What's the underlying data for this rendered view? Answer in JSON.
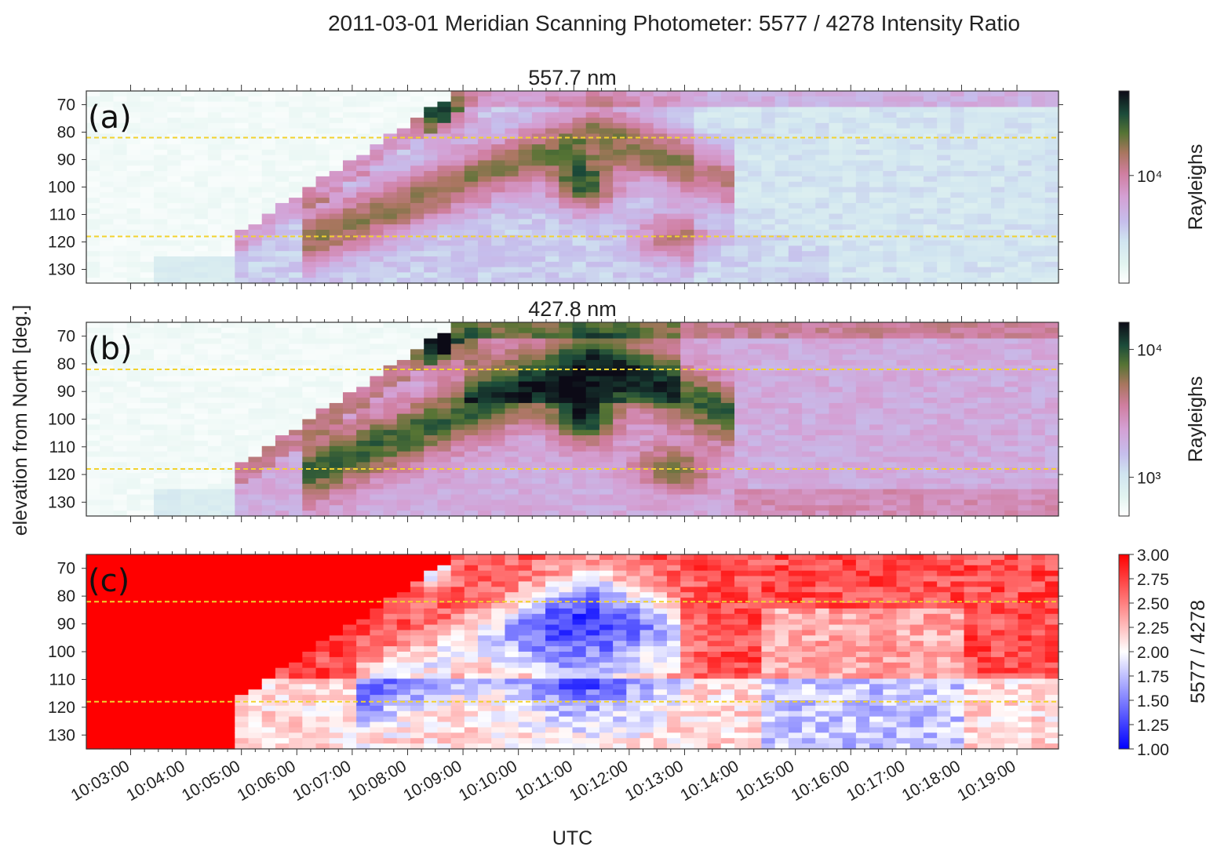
{
  "figure_title": "2011-03-01  Meridian Scanning Photometer: 5577 / 4278 Intensity Ratio",
  "chart_data": [
    {
      "type": "heatmap",
      "panel_letter": "(a)",
      "title": "557.7 nm",
      "ylabel": "elevation from North [deg.]",
      "yticks": [
        70,
        80,
        90,
        100,
        110,
        120,
        130
      ],
      "ylim": [
        135,
        65
      ],
      "xlim": [
        "10:02:12",
        "10:19:45"
      ],
      "reference_lines": [
        82,
        118
      ],
      "colorbar": {
        "label": "Rayleighs",
        "scale": "log",
        "ticks": [
          "10⁴"
        ],
        "colormap": "cubehelix-like (white–lilac–pink–olive–black)"
      }
    },
    {
      "type": "heatmap",
      "panel_letter": "(b)",
      "title": "427.8 nm",
      "yticks": [
        70,
        80,
        90,
        100,
        110,
        120,
        130
      ],
      "ylim": [
        135,
        65
      ],
      "reference_lines": [
        82,
        118
      ],
      "colorbar": {
        "label": "Rayleighs",
        "scale": "log",
        "ticks": [
          "10⁴",
          "10³"
        ],
        "colormap": "cubehelix-like (white–lilac–pink–olive–black)"
      }
    },
    {
      "type": "heatmap",
      "panel_letter": "(c)",
      "xlabel": "UTC",
      "xticks": [
        "10:03:00",
        "10:04:00",
        "10:05:00",
        "10:06:00",
        "10:07:00",
        "10:08:00",
        "10:09:00",
        "10:10:00",
        "10:11:00",
        "10:12:00",
        "10:13:00",
        "10:14:00",
        "10:15:00",
        "10:16:00",
        "10:17:00",
        "10:18:00",
        "10:19:00"
      ],
      "yticks": [
        70,
        80,
        90,
        100,
        110,
        120,
        130
      ],
      "ylim": [
        135,
        65
      ],
      "reference_lines": [
        82,
        118
      ],
      "colorbar": {
        "label": "5577 / 4278",
        "scale": "linear",
        "range": [
          1.0,
          3.0
        ],
        "ticks": [
          "3.00",
          "2.75",
          "2.50",
          "2.25",
          "2.00",
          "1.75",
          "1.50",
          "1.25",
          "1.00"
        ],
        "colormap": "bwr"
      }
    }
  ],
  "colors": {
    "reference_line": "#f2d22e",
    "ratio_high": "#ff0000",
    "ratio_mid": "#ffffff",
    "ratio_low": "#0000ff"
  }
}
